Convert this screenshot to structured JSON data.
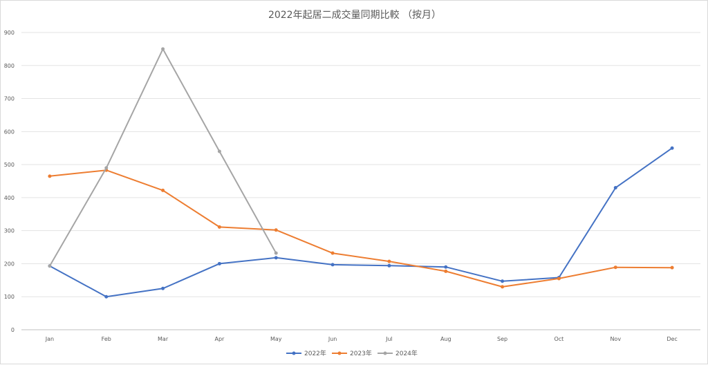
{
  "chart_data": {
    "type": "line",
    "title": "2022年起居二成交量同期比較 （按月）",
    "categories": [
      "Jan",
      "Feb",
      "Mar",
      "Apr",
      "May",
      "Jun",
      "Jul",
      "Aug",
      "Sep",
      "Oct",
      "Nov",
      "Dec"
    ],
    "ylim": [
      0,
      900
    ],
    "yticks": [
      0,
      100,
      200,
      300,
      400,
      500,
      600,
      700,
      800,
      900
    ],
    "grid": true,
    "legend_position": "bottom",
    "series": [
      {
        "name": "2022年",
        "color": "#4472c4",
        "values": [
          193,
          100,
          125,
          200,
          218,
          197,
          194,
          190,
          147,
          158,
          430,
          550
        ]
      },
      {
        "name": "2023年",
        "color": "#ed7d31",
        "values": [
          465,
          483,
          422,
          311,
          302,
          232,
          207,
          177,
          130,
          155,
          189,
          188
        ]
      },
      {
        "name": "2024年",
        "color": "#a5a5a5",
        "values": [
          193,
          490,
          850,
          540,
          232,
          null,
          null,
          null,
          null,
          null,
          null,
          null
        ]
      }
    ]
  }
}
